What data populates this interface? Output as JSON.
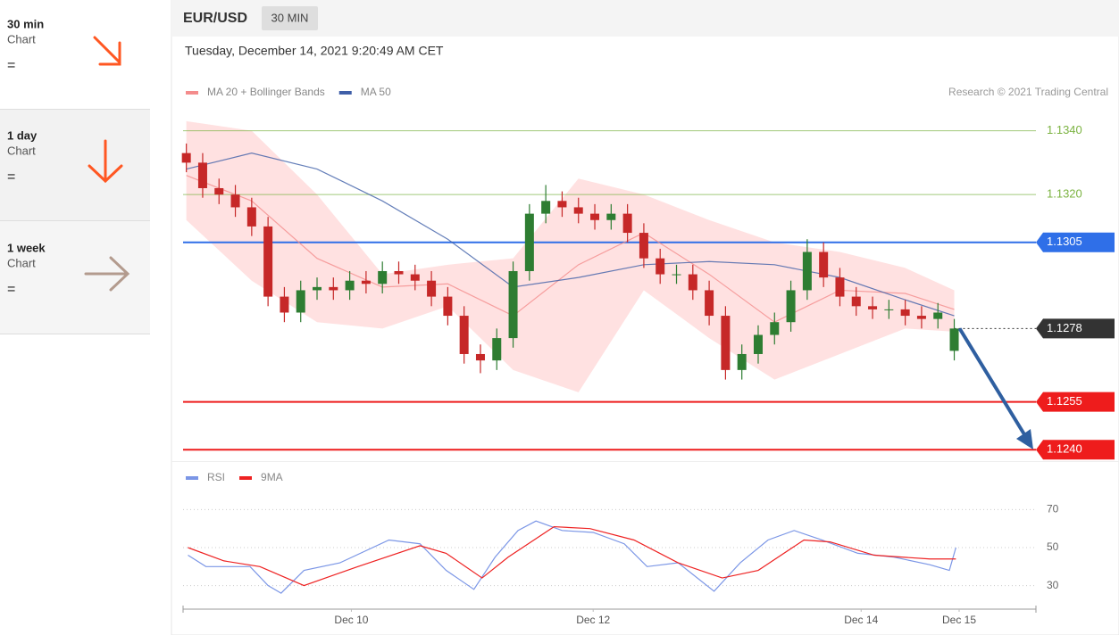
{
  "sidebar": [
    {
      "period": "30 min",
      "label": "Chart",
      "signal": "="
    },
    {
      "period": "1 day",
      "label": "Chart",
      "signal": "="
    },
    {
      "period": "1 week",
      "label": "Chart",
      "signal": "="
    }
  ],
  "header": {
    "symbol": "EUR/USD",
    "interval": "30 MIN"
  },
  "chart_data": [
    {
      "type": "candlestick",
      "subtitle": "Tuesday, December 14, 2021 9:20:49 AM CET",
      "credit": "Research © 2021 Trading Central",
      "open": [
        1.1333,
        1.133,
        1.1322,
        1.132,
        1.1316,
        1.131,
        1.1288,
        1.1283,
        1.129,
        1.1291,
        1.129,
        1.1293,
        1.1292,
        1.1296,
        1.1295,
        1.1293,
        1.1288,
        1.1282,
        1.127,
        1.1268,
        1.1275,
        1.1296,
        1.1314,
        1.1318,
        1.1316,
        1.1314,
        1.1312,
        1.1314,
        1.1308,
        1.13,
        1.1295,
        1.1295,
        1.129,
        1.1282,
        1.1265,
        1.127,
        1.1276,
        1.128,
        1.129,
        1.1302,
        1.1294,
        1.1288,
        1.1285,
        1.1284,
        1.1284,
        1.1282,
        1.1281,
        1.1271
      ],
      "high": [
        1.1336,
        1.1333,
        1.1325,
        1.1323,
        1.1319,
        1.1313,
        1.1291,
        1.1293,
        1.1294,
        1.1294,
        1.1296,
        1.1296,
        1.1299,
        1.1299,
        1.1298,
        1.1296,
        1.1291,
        1.1285,
        1.1273,
        1.1278,
        1.1299,
        1.1317,
        1.1323,
        1.1321,
        1.1319,
        1.1317,
        1.1317,
        1.1317,
        1.1311,
        1.1303,
        1.1298,
        1.1298,
        1.1293,
        1.1285,
        1.1273,
        1.1279,
        1.1283,
        1.1293,
        1.1306,
        1.1305,
        1.1297,
        1.1291,
        1.1288,
        1.1287,
        1.1287,
        1.1285,
        1.1286,
        1.1281
      ],
      "low": [
        1.1327,
        1.1319,
        1.1317,
        1.1313,
        1.1307,
        1.1285,
        1.128,
        1.128,
        1.1287,
        1.1287,
        1.1287,
        1.1289,
        1.1289,
        1.1292,
        1.129,
        1.1285,
        1.1279,
        1.1267,
        1.1264,
        1.1265,
        1.1272,
        1.1293,
        1.1311,
        1.1313,
        1.1311,
        1.1309,
        1.1309,
        1.1305,
        1.1297,
        1.1292,
        1.1292,
        1.1287,
        1.1279,
        1.1262,
        1.1262,
        1.1267,
        1.1273,
        1.1277,
        1.1287,
        1.1291,
        1.1285,
        1.1282,
        1.1281,
        1.1281,
        1.1279,
        1.1278,
        1.1278,
        1.1268
      ],
      "close": [
        1.133,
        1.1322,
        1.132,
        1.1316,
        1.131,
        1.1288,
        1.1283,
        1.129,
        1.1291,
        1.129,
        1.1293,
        1.1292,
        1.1296,
        1.1295,
        1.1293,
        1.1288,
        1.1282,
        1.127,
        1.1268,
        1.1275,
        1.1296,
        1.1314,
        1.1318,
        1.1316,
        1.1314,
        1.1312,
        1.1314,
        1.1308,
        1.13,
        1.1295,
        1.1295,
        1.129,
        1.1282,
        1.1265,
        1.127,
        1.1276,
        1.128,
        1.129,
        1.1302,
        1.1294,
        1.1288,
        1.1285,
        1.1284,
        1.1284,
        1.1282,
        1.1281,
        1.1283,
        1.1278
      ],
      "up_color": "#2e7d32",
      "down_color": "#c62828",
      "xlim": [
        -0.2,
        52
      ],
      "ylim": [
        1.1237,
        1.1348
      ],
      "indicator_x": [
        0,
        4,
        8,
        12,
        16,
        20,
        24,
        28,
        32,
        36,
        40,
        44,
        47
      ],
      "series": [
        {
          "name": "MA 20 + Bollinger Bands",
          "color": "#f48c8c",
          "band_color": "#ffd9d9",
          "values": [
            1.1326,
            1.1318,
            1.13,
            1.1291,
            1.1292,
            1.1282,
            1.1298,
            1.1308,
            1.1295,
            1.128,
            1.129,
            1.1289,
            1.1284
          ],
          "upper": [
            1.1343,
            1.134,
            1.132,
            1.1295,
            1.1298,
            1.13,
            1.1325,
            1.132,
            1.1312,
            1.1305,
            1.1302,
            1.1297,
            1.129
          ],
          "lower": [
            1.1312,
            1.1293,
            1.128,
            1.1278,
            1.1285,
            1.1265,
            1.1258,
            1.129,
            1.1275,
            1.1262,
            1.127,
            1.1278,
            1.1277
          ]
        },
        {
          "name": "MA 50",
          "color": "#3f5fa8",
          "values": [
            1.1328,
            1.1333,
            1.1328,
            1.1318,
            1.1306,
            1.1291,
            1.1294,
            1.1298,
            1.1299,
            1.1298,
            1.1294,
            1.1287,
            1.1282
          ]
        }
      ],
      "levels": [
        {
          "value": 1.134,
          "label": "1.1340",
          "color": "#7cb342",
          "boxed": false,
          "dotted": false
        },
        {
          "value": 1.132,
          "label": "1.1320",
          "color": "#7cb342",
          "boxed": false,
          "dotted": false
        },
        {
          "value": 1.1305,
          "label": "1.1305",
          "color": "#2f6fe8",
          "boxed": true,
          "dotted": false
        },
        {
          "value": 1.1278,
          "label": "1.1278",
          "color": "#333333",
          "boxed": true,
          "dotted": true
        },
        {
          "value": 1.1255,
          "label": "1.1255",
          "color": "#ee1c1c",
          "boxed": true,
          "dotted": false
        },
        {
          "value": 1.124,
          "label": "1.1240",
          "color": "#ee1c1c",
          "boxed": true,
          "dotted": false
        }
      ]
    },
    {
      "type": "line",
      "series": [
        {
          "name": "RSI",
          "color": "#7b96e6",
          "x": [
            0.1,
            1.2,
            3.9,
            5.0,
            5.8,
            7.2,
            9.4,
            12.4,
            14.3,
            15.9,
            17.6,
            18.9,
            20.3,
            21.4,
            23.0,
            24.9,
            26.8,
            28.2,
            30.1,
            32.3,
            33.9,
            35.6,
            37.2,
            38.9,
            41.1,
            43.3,
            45.5,
            46.7,
            47.1
          ],
          "values": [
            46,
            40,
            40,
            30,
            26,
            38,
            42,
            54,
            52,
            38,
            28,
            45,
            59,
            64,
            59,
            58,
            52,
            40,
            42,
            27,
            42,
            54,
            59,
            54,
            47,
            45,
            41,
            38,
            50
          ]
        },
        {
          "name": "9MA",
          "color": "#ee2222",
          "x": [
            0.1,
            2.3,
            4.5,
            7.2,
            10.5,
            14.3,
            15.9,
            18.1,
            19.7,
            22.5,
            24.7,
            27.4,
            30.1,
            32.8,
            35.0,
            37.8,
            39.4,
            42.1,
            45.5,
            47.1
          ],
          "values": [
            50,
            43,
            40,
            30,
            40,
            51,
            47,
            34,
            45,
            61,
            60,
            54,
            42,
            34,
            38,
            54,
            53,
            46,
            44,
            44
          ]
        }
      ],
      "xlim": [
        -0.2,
        52
      ],
      "xticks": [
        {
          "value": 10.1,
          "label": "Dec 10"
        },
        {
          "value": 24.9,
          "label": "Dec 12"
        },
        {
          "value": 41.3,
          "label": "Dec 14"
        },
        {
          "value": 47.3,
          "label": "Dec 15"
        }
      ],
      "ylim": [
        19,
        81
      ],
      "yticks": [
        30,
        50,
        70
      ],
      "grid": true
    }
  ]
}
